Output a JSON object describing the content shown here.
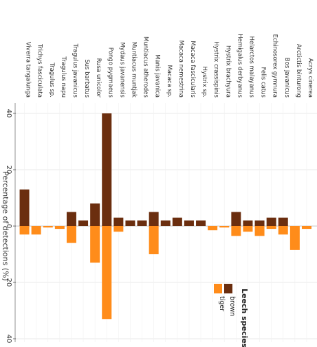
{
  "chart_data": {
    "type": "bar",
    "orientation": "rotated-90-clockwise",
    "ylabel": "Percentage of detections (%)",
    "y_tick_labels": [
      "40",
      "20",
      "0",
      "20",
      "40"
    ],
    "y_ticks": [
      40,
      20,
      0,
      -20,
      -40
    ],
    "ylim": [
      -40,
      40
    ],
    "grid": true,
    "legend_position": "bottom-right",
    "legend": {
      "title": "Leech species",
      "entries": [
        {
          "name": "brown",
          "color": "#6b2e0f"
        },
        {
          "name": "tiger",
          "color": "#ff8c1a"
        }
      ]
    },
    "categories": [
      "Viverra tangalunga",
      "Trichys fasciculata",
      "Tragulus sp.",
      "Tragulus napu",
      "Tragulus javanicus",
      "Sus barbatus",
      "Rusa unicolor",
      "Pongo pygmaeus",
      "Mydaus javanensis",
      "Muntiacus muntjak",
      "Muntiacus atherodes",
      "Manis javanica",
      "Macaca sp.",
      "Macaca nemestrina",
      "Macaca fascicularis",
      "Hystrix sp.",
      "Hystrix crassispinis",
      "Hystrix brachyura",
      "Hemigalus derbyanus",
      "Helarctos malayanus",
      "Felis catus",
      "Echinosorex gymnura",
      "Bos javanicus",
      "Arctictis binturong",
      "Acrys cinerea"
    ],
    "series": [
      {
        "name": "brown",
        "color": "#6b2e0f",
        "values": [
          13,
          0,
          0,
          0,
          5,
          2,
          8,
          40,
          3,
          2,
          2,
          5,
          2,
          3,
          2,
          2,
          0,
          0,
          5,
          2,
          2,
          3,
          3,
          0,
          0
        ]
      },
      {
        "name": "tiger",
        "color": "#ff8c1a",
        "values": [
          3,
          3,
          0.5,
          1,
          6,
          0,
          13,
          33,
          2,
          0,
          0,
          10,
          0,
          0,
          0,
          0,
          1.5,
          0.5,
          3.5,
          2,
          3.5,
          1,
          3,
          8.5,
          1
        ]
      }
    ]
  }
}
